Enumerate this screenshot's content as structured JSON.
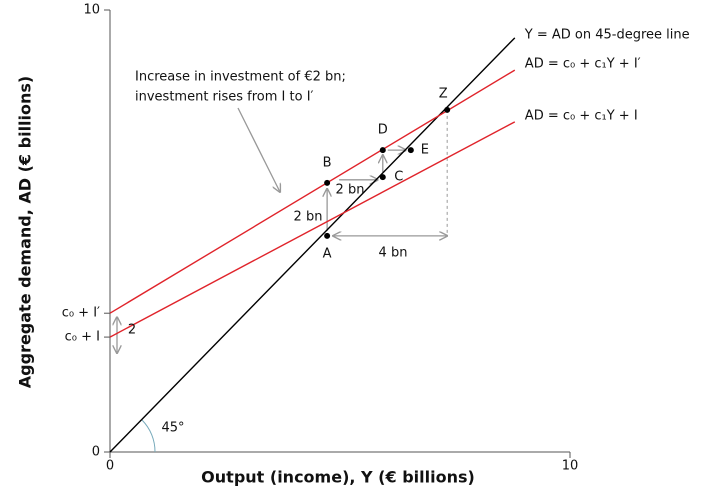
{
  "chart_data": {
    "type": "line",
    "x_label": "Output (income), Y (€ billions)",
    "y_label": "Aggregate demand, AD (€ billions)",
    "xlim": [
      0,
      10
    ],
    "ylim": [
      0,
      10
    ],
    "xticks": [
      0,
      10
    ],
    "yticks": [
      0,
      {
        "value": 2.6,
        "label": "c₀ + I"
      },
      {
        "value": 3.14,
        "label": "c₀ + I′"
      },
      10
    ],
    "series": [
      {
        "name": "Y = AD on 45-degree line",
        "color": "#000000",
        "x": [
          0,
          8.8
        ],
        "values": [
          0,
          9.37
        ]
      },
      {
        "name": "AD = c₀ + c₁Y + I′",
        "color": "#e0242b",
        "x": [
          0,
          8.8
        ],
        "values": [
          3.14,
          8.64
        ]
      },
      {
        "name": "AD = c₀ + c₁Y + I",
        "color": "#e0242b",
        "x": [
          0,
          8.8
        ],
        "values": [
          2.6,
          7.47
        ]
      }
    ],
    "points": {
      "labels": [
        "A",
        "B",
        "C",
        "D",
        "E",
        "Z"
      ],
      "x": [
        4.72,
        4.72,
        5.93,
        5.93,
        6.54,
        7.33
      ],
      "values": [
        4.89,
        6.09,
        6.22,
        6.83,
        6.83,
        7.74
      ]
    },
    "annotations": [
      "Increase in investment of €2 bn;",
      "investment rises from I to I′",
      "2 bn",
      "2 bn",
      "4 bn",
      "2",
      "45°"
    ]
  }
}
